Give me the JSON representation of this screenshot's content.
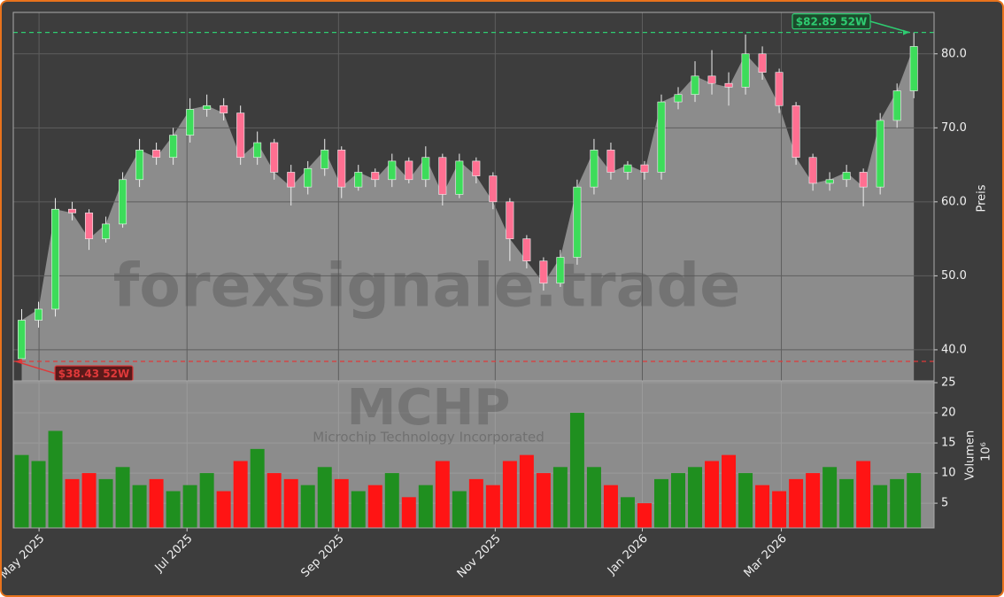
{
  "chart_data": {
    "type": "candlestick",
    "title": "MCHP",
    "subtitle": "Microchip Technology Incorporated",
    "watermark": "forexsignale.trade",
    "y_label": "Preis",
    "y2_label": "Volumen",
    "y2_exponent": "10⁶",
    "x": [
      0,
      1,
      2,
      3,
      4,
      5,
      6,
      7,
      8,
      9,
      10,
      11,
      12,
      13,
      14,
      15,
      16,
      17,
      18,
      19,
      20,
      21,
      22,
      23,
      24,
      25,
      26,
      27,
      28,
      29,
      30,
      31,
      32,
      33,
      34,
      35,
      36,
      37,
      38,
      39,
      40,
      41,
      42,
      43,
      44,
      45,
      46,
      47,
      48,
      49,
      50,
      51,
      52,
      53
    ],
    "open": [
      38.8,
      44,
      45.5,
      59,
      58.5,
      55,
      57,
      63,
      67,
      66,
      69,
      72.5,
      73,
      72,
      66,
      68,
      64,
      62,
      64.5,
      67,
      62,
      64,
      63,
      65.5,
      63,
      66,
      61,
      65.5,
      63.5,
      60,
      55,
      52,
      49,
      52.5,
      62,
      67,
      64,
      65,
      64,
      73.5,
      74.5,
      77,
      76,
      75.5,
      80,
      77.5,
      73,
      66,
      62.5,
      63,
      64,
      62,
      71,
      75
    ],
    "high": [
      45.5,
      46.5,
      60.5,
      60,
      59,
      58,
      64,
      68.5,
      68,
      70,
      74,
      74.5,
      74,
      73,
      69.5,
      68.5,
      65,
      65.5,
      68.5,
      67.5,
      65,
      64.5,
      66.5,
      66,
      67.5,
      66.5,
      66.5,
      66,
      64,
      60.5,
      55.5,
      52.5,
      53.5,
      63,
      68.5,
      68,
      65.5,
      65.5,
      74.5,
      75.5,
      79,
      80.5,
      77.5,
      82.6,
      81,
      78,
      73.5,
      66.5,
      64,
      65,
      64.5,
      72,
      76,
      82.89
    ],
    "low": [
      38.43,
      43,
      44.5,
      57.5,
      53.5,
      54.5,
      56.5,
      62,
      65,
      65,
      68,
      71.5,
      71,
      65,
      65,
      63,
      59.5,
      61,
      63.5,
      60.5,
      61.5,
      62,
      62,
      62.5,
      62,
      59.5,
      60.5,
      62.5,
      59,
      52,
      51,
      48,
      48.5,
      51.5,
      61,
      63,
      63,
      63,
      63,
      72.5,
      73.5,
      74.5,
      73,
      74.5,
      76.5,
      72,
      65,
      61.5,
      61.5,
      62,
      59.4,
      61,
      70,
      74
    ],
    "close": [
      44,
      45.5,
      59,
      58.5,
      55,
      57,
      63,
      67,
      66,
      69,
      72.5,
      73,
      72,
      66,
      68,
      64,
      62,
      64.5,
      67,
      62,
      64,
      63,
      65.5,
      63,
      66,
      61,
      65.5,
      63.5,
      60,
      55,
      52,
      49,
      52.5,
      62,
      67,
      64,
      65,
      64,
      73.5,
      74.5,
      77,
      76,
      75.5,
      80,
      77.5,
      73,
      66,
      62.5,
      63,
      64,
      62,
      71,
      75,
      81
    ],
    "volume": [
      13,
      12,
      17,
      9,
      10,
      9,
      11,
      8,
      9,
      7,
      8,
      10,
      7,
      12,
      14,
      10,
      9,
      8,
      11,
      9,
      7,
      8,
      10,
      6,
      8,
      12,
      7,
      9,
      8,
      12,
      13,
      10,
      11,
      20,
      11,
      8,
      6,
      5,
      9,
      10,
      11,
      12,
      13,
      10,
      8,
      7,
      9,
      10,
      11,
      9,
      12,
      8,
      9,
      10
    ],
    "xlim": [
      -0.5,
      54.2
    ],
    "xticks": [
      {
        "value": 1.03,
        "label": "May 2025"
      },
      {
        "value": 9.82,
        "label": "Jul 2025"
      },
      {
        "value": 18.82,
        "label": "Sep 2025"
      },
      {
        "value": 28.13,
        "label": "Nov 2025"
      },
      {
        "value": 36.87,
        "label": "Jan 2026"
      },
      {
        "value": 45.13,
        "label": "Mar 2026"
      }
    ],
    "ylim": [
      35.8,
      85.6
    ],
    "yticks": [
      {
        "value": 40,
        "label": "40.0"
      },
      {
        "value": 50,
        "label": "50.0"
      },
      {
        "value": 60,
        "label": "60.0"
      },
      {
        "value": 70,
        "label": "70.0"
      },
      {
        "value": 80,
        "label": "80.0"
      }
    ],
    "y2lim": [
      0.9,
      25.3
    ],
    "y2ticks": [
      5,
      10,
      15,
      20,
      25
    ],
    "grid": true,
    "up_color": "#3ddc5a",
    "down_color": "#ff6f91",
    "volume_up_color": "#1f8f1f",
    "volume_down_color": "#ff1414",
    "area_color": "#8c8c8c",
    "annotations": [
      {
        "label": "$82.89 52W",
        "value": 82.89,
        "color": "#2ecc71"
      },
      {
        "label": "$38.43 52W",
        "value": 38.43,
        "color": "#e0393a"
      }
    ]
  }
}
